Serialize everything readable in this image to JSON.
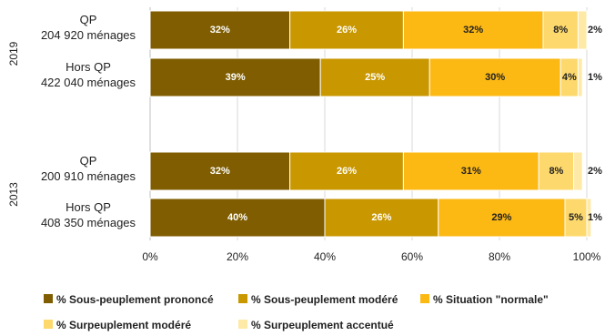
{
  "chart_data": {
    "type": "bar",
    "orientation": "horizontal",
    "stacked": true,
    "percent_suffix": "%",
    "xlim": [
      0,
      100
    ],
    "x_ticks": [
      "0%",
      "20%",
      "40%",
      "60%",
      "80%",
      "100%"
    ],
    "grid": true,
    "legend_position": "bottom",
    "groups": [
      {
        "year": "2019",
        "bars": [
          {
            "line1": "QP",
            "line2": "204 920 ménages",
            "values": [
              32,
              26,
              32,
              8,
              2
            ]
          },
          {
            "line1": "Hors QP",
            "line2": "422 040 ménages",
            "values": [
              39,
              25,
              30,
              4,
              1
            ]
          }
        ]
      },
      {
        "year": "2013",
        "bars": [
          {
            "line1": "QP",
            "line2": "200 910 ménages",
            "values": [
              32,
              26,
              31,
              8,
              2
            ]
          },
          {
            "line1": "Hors QP",
            "line2": "408 350 ménages",
            "values": [
              40,
              26,
              29,
              5,
              1
            ]
          }
        ]
      }
    ],
    "series": [
      {
        "name": "% Sous-peuplement prononcé",
        "color": "#7f5d00",
        "label_color": "#ffffff"
      },
      {
        "name": "% Sous-peuplement modéré",
        "color": "#c99700",
        "label_color": "#ffffff"
      },
      {
        "name": "% Situation \"normale\"",
        "color": "#fcb813",
        "label_color": "#222222"
      },
      {
        "name": "% Surpeuplement modéré",
        "color": "#fdd86c",
        "label_color": "#222222"
      },
      {
        "name": "% Surpeuplement accentué",
        "color": "#fee9a6",
        "label_color": "#222222"
      }
    ]
  }
}
